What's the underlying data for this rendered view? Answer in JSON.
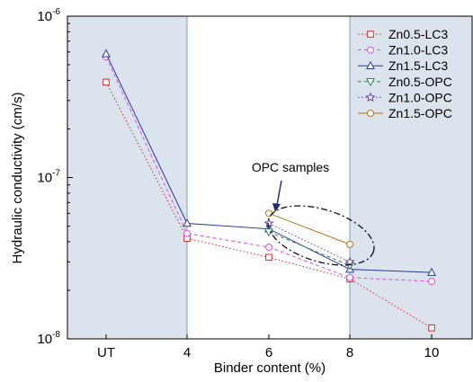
{
  "chart_data": {
    "type": "line",
    "xlabel": "Binder content (%)",
    "ylabel": "Hydraulic conductivity (cm/s)",
    "x_scale": "categorical",
    "y_scale": "log",
    "ylim": [
      1e-08,
      1e-06
    ],
    "categories": [
      "UT",
      "4",
      "6",
      "8",
      "10"
    ],
    "y_ticks": [
      {
        "value": 1e-08,
        "mantissa": "10",
        "exp": "-8"
      },
      {
        "value": 1e-07,
        "mantissa": "10",
        "exp": "-7"
      },
      {
        "value": 1e-06,
        "mantissa": "10",
        "exp": "-6"
      }
    ],
    "shaded_regions": [
      {
        "from": "UT",
        "to": "4",
        "color": "#dbe3ec"
      },
      {
        "from": "8",
        "to": "10",
        "color": "#dbe3ec"
      }
    ],
    "legend_position": "top-right",
    "series": [
      {
        "name": "Zn0.5-LC3",
        "color": "#d62728",
        "dash": "1.5,2.5",
        "marker": "square",
        "points": [
          [
            "UT",
            3.9e-07
          ],
          [
            "4",
            4.2e-08
          ],
          [
            "6",
            3.2e-08
          ],
          [
            "8",
            2.35e-08
          ],
          [
            "10",
            1.17e-08
          ]
        ]
      },
      {
        "name": "Zn1.0-LC3",
        "color": "#e64ae0",
        "dash": "4,3",
        "marker": "circle",
        "points": [
          [
            "UT",
            5.6e-07
          ],
          [
            "4",
            4.5e-08
          ],
          [
            "6",
            3.7e-08
          ],
          [
            "8",
            2.4e-08
          ],
          [
            "10",
            2.27e-08
          ]
        ]
      },
      {
        "name": "Zn1.5-LC3",
        "color": "#2a3a9e",
        "dash": "",
        "marker": "triangle-up",
        "points": [
          [
            "UT",
            5.85e-07
          ],
          [
            "4",
            5.2e-08
          ],
          [
            "6",
            4.8e-08
          ],
          [
            "8",
            2.7e-08
          ],
          [
            "10",
            2.58e-08
          ]
        ]
      },
      {
        "name": "Zn0.5-OPC",
        "color": "#2e8b57",
        "dash": "4,3",
        "marker": "triangle-down",
        "points": [
          [
            "6",
            4.6e-08
          ],
          [
            "8",
            2.85e-08
          ]
        ]
      },
      {
        "name": "Zn1.0-OPC",
        "color": "#6a3fa0",
        "dash": "1.5,2.5",
        "marker": "star",
        "points": [
          [
            "6",
            5.2e-08
          ],
          [
            "8",
            3e-08
          ]
        ]
      },
      {
        "name": "Zn1.5-OPC",
        "color": "#b8741a",
        "dash": "",
        "marker": "circle",
        "points": [
          [
            "6",
            6e-08
          ],
          [
            "8",
            3.85e-08
          ]
        ]
      }
    ],
    "annotation": {
      "text": "OPC samples"
    }
  }
}
